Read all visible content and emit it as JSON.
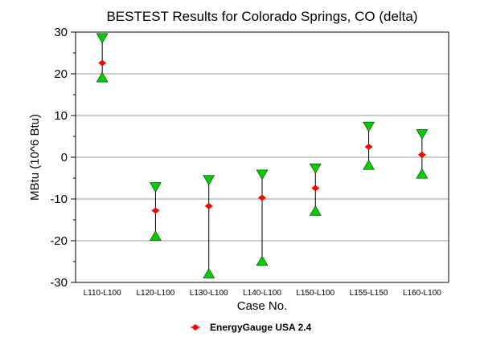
{
  "chart_data": {
    "type": "scatter",
    "title": "BESTEST Results for Colorado Springs, CO (delta)",
    "xlabel": "Case No.",
    "ylabel": "MBtu (10^6 Btu)",
    "ylim": [
      -30,
      30
    ],
    "yticks": [
      30,
      20,
      10,
      0,
      -10,
      -20,
      -30
    ],
    "grid": "horizontal",
    "categories": [
      "L110-L100",
      "L120-L100",
      "L130-L100",
      "L140-L100",
      "L150-L100",
      "L155-L150",
      "L160-L100"
    ],
    "range_max": [
      28.3,
      -7.4,
      -5.7,
      -4.4,
      -2.9,
      7.1,
      5.3
    ],
    "range_min": [
      19.4,
      -18.6,
      -27.6,
      -24.6,
      -12.6,
      -1.6,
      -3.7
    ],
    "series": [
      {
        "name": "EnergyGauge USA 2.4",
        "values": [
          22.6,
          -12.8,
          -11.7,
          -9.7,
          -7.4,
          2.5,
          0.6
        ]
      }
    ],
    "legend_position": "bottom-center",
    "colors": {
      "marker": "#ff0000",
      "range_marker": "#00cc00",
      "grid": "#999999",
      "axis": "#000000"
    }
  }
}
